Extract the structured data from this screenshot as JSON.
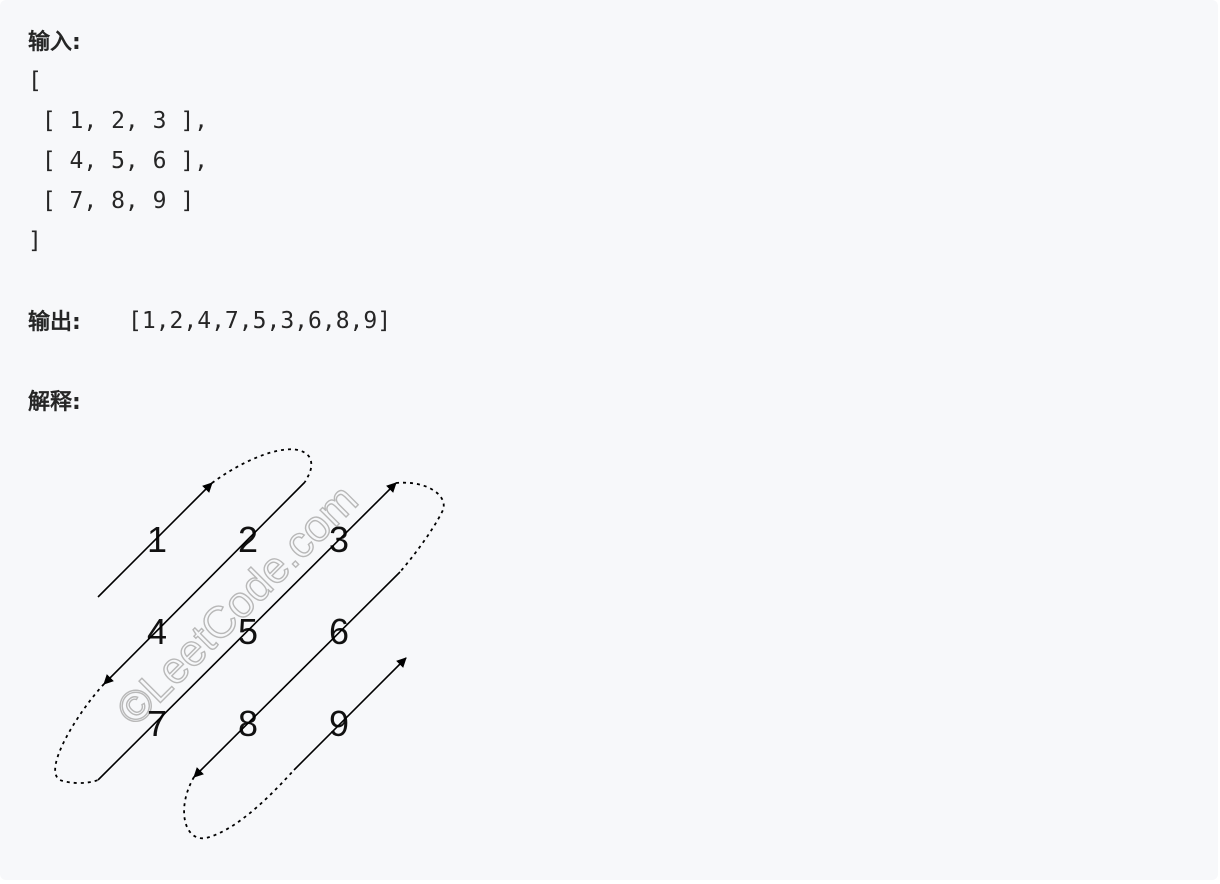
{
  "input": {
    "label": "输入:",
    "lines": [
      "[",
      " [ 1, 2, 3 ],",
      " [ 4, 5, 6 ],",
      " [ 7, 8, 9 ]",
      "]"
    ]
  },
  "output": {
    "label": "输出:",
    "value": "[1,2,4,7,5,3,6,8,9]"
  },
  "explanation": {
    "label": "解释:"
  },
  "diagram": {
    "numbers": [
      "1",
      "2",
      "3",
      "4",
      "5",
      "6",
      "7",
      "8",
      "9"
    ],
    "watermark": "©LeetCode.com"
  }
}
